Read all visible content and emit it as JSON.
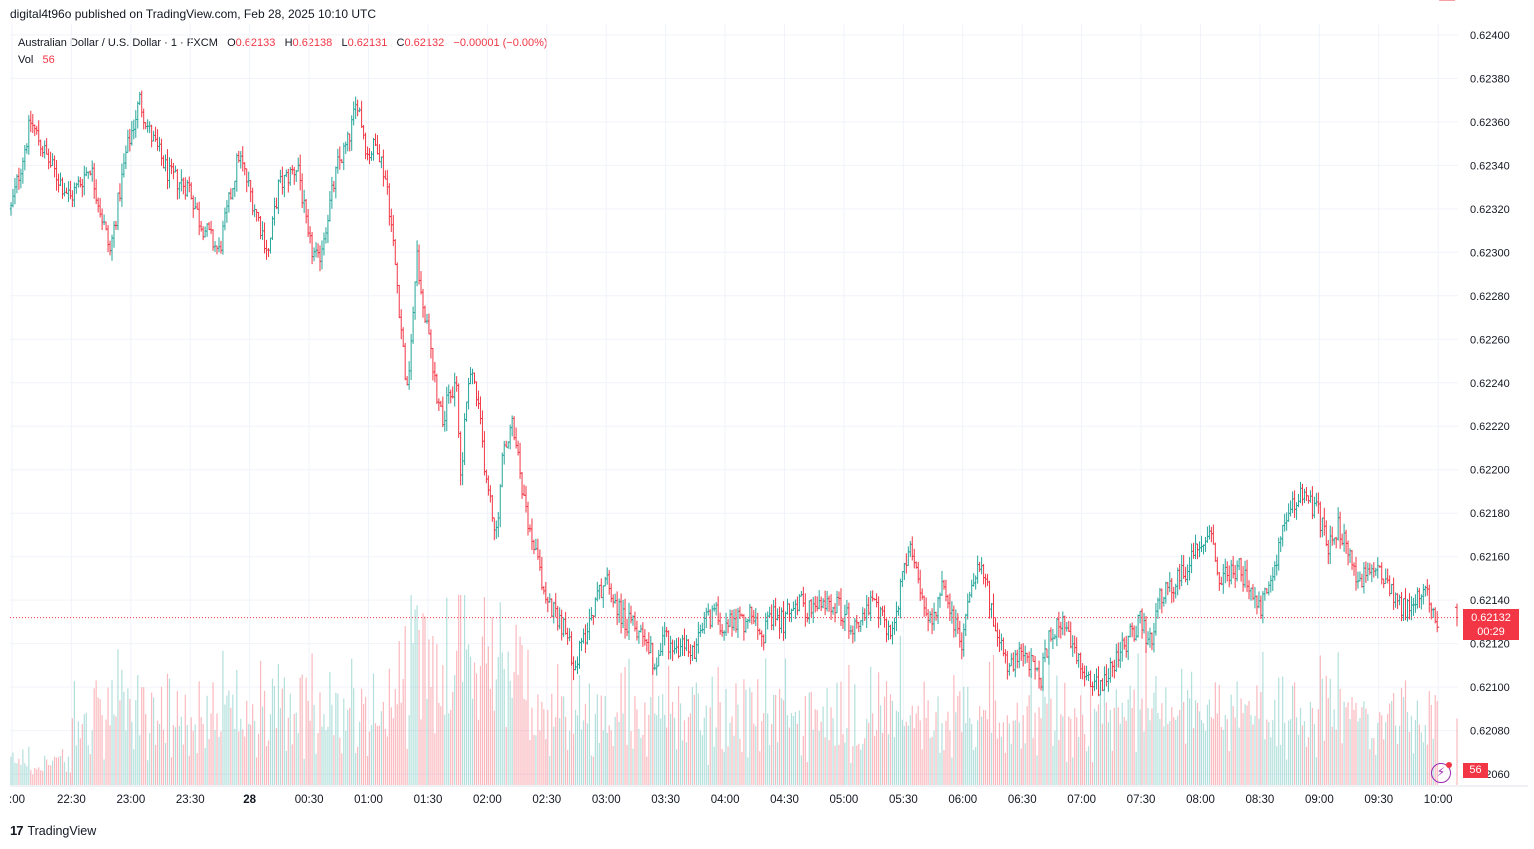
{
  "header": {
    "published": "digital4t96o published on TradingView.com, Feb 28, 2025 10:10 UTC"
  },
  "legend": {
    "symbol": "Australian Dollar / U.S. Dollar · 1 · FXCM",
    "o_label": "O",
    "o_value": "0.62133",
    "h_label": "H",
    "h_value": "0.62138",
    "l_label": "L",
    "l_value": "0.62131",
    "c_label": "C",
    "c_value": "0.62132",
    "change": "−0.00001 (−0.00%)",
    "vol_label": "Vol",
    "vol_value": "56"
  },
  "price_tag": {
    "price": "0.62132",
    "countdown": "00:29"
  },
  "volume_tag": "56",
  "footer": {
    "brand_logo": "17",
    "brand": "TradingView"
  },
  "colors": {
    "up": "#26a69a",
    "down": "#f23645",
    "grid": "#f0f3fa",
    "text": "#131722",
    "indicator": "#9c27b0"
  },
  "chart_data": {
    "type": "ohlc",
    "title": "Australian Dollar / U.S. Dollar · 1 · FXCM",
    "ylim": [
      0.62055,
      0.62405
    ],
    "y_ticks": [
      "0.62400",
      "0.62380",
      "0.62360",
      "0.62340",
      "0.62320",
      "0.62300",
      "0.62280",
      "0.62260",
      "0.62240",
      "0.62220",
      "0.62200",
      "0.62180",
      "0.62160",
      "0.62140",
      "0.62120",
      "0.62100",
      "0.62080",
      "0.62060"
    ],
    "x_ticks": [
      ":00",
      "22:30",
      "23:00",
      "23:30",
      "28",
      "00:30",
      "01:00",
      "01:30",
      "02:00",
      "02:30",
      "03:00",
      "03:30",
      "04:00",
      "04:30",
      "05:00",
      "05:30",
      "06:00",
      "06:30",
      "07:00",
      "07:30",
      "08:00",
      "08:30",
      "09:00",
      "09:30",
      "10:00"
    ],
    "x_tick_minutes": [
      -180,
      -150,
      -120,
      -90,
      -60,
      -30,
      0,
      30,
      60,
      90,
      120,
      150,
      180,
      210,
      240,
      270,
      300,
      330,
      360,
      390,
      420,
      450,
      480,
      510,
      540
    ],
    "x_range_minutes": [
      -181,
      550
    ],
    "last_price": 0.62132,
    "anchors_minutes": [
      -180,
      -175,
      -170,
      -160,
      -150,
      -140,
      -130,
      -122,
      -115,
      -110,
      -100,
      -90,
      -85,
      -75,
      -65,
      -55,
      -50,
      -45,
      -35,
      -30,
      -25,
      -15,
      -10,
      -5,
      0,
      5,
      10,
      15,
      20,
      22,
      25,
      27,
      32,
      35,
      38,
      45,
      47,
      50,
      53,
      57,
      60,
      63,
      65,
      68,
      73,
      75,
      80,
      85,
      90,
      95,
      100,
      105,
      110,
      115,
      120,
      125,
      130,
      140,
      145,
      150,
      155,
      160,
      165,
      170,
      175,
      180,
      185,
      190,
      195,
      200,
      205,
      210,
      215,
      225,
      235,
      245,
      255,
      265,
      270,
      275,
      280,
      285,
      290,
      300,
      305,
      310,
      318,
      325,
      330,
      340,
      345,
      350,
      355,
      360,
      365,
      370,
      375,
      380,
      385,
      390,
      395,
      400,
      410,
      420,
      425,
      430,
      440,
      450,
      455,
      460,
      465,
      470,
      480,
      485,
      490,
      495,
      500,
      505,
      510,
      515,
      520,
      525,
      530,
      535,
      540,
      545,
      548
    ],
    "anchors_close": [
      0.6232,
      0.6234,
      0.6236,
      0.6234,
      0.62325,
      0.6234,
      0.623,
      0.62345,
      0.6237,
      0.62355,
      0.62335,
      0.6233,
      0.62315,
      0.623,
      0.62345,
      0.62315,
      0.623,
      0.6233,
      0.6234,
      0.62305,
      0.62295,
      0.6234,
      0.6235,
      0.6237,
      0.62345,
      0.6235,
      0.6233,
      0.62285,
      0.62235,
      0.6226,
      0.623,
      0.6228,
      0.62255,
      0.62235,
      0.62225,
      0.6224,
      0.62195,
      0.62235,
      0.62245,
      0.6222,
      0.62195,
      0.6218,
      0.6217,
      0.62205,
      0.6222,
      0.6221,
      0.6218,
      0.6216,
      0.6214,
      0.62135,
      0.62125,
      0.6211,
      0.62125,
      0.6214,
      0.6215,
      0.6214,
      0.6213,
      0.62125,
      0.6211,
      0.62125,
      0.62115,
      0.6212,
      0.62115,
      0.6213,
      0.62135,
      0.62128,
      0.62132,
      0.6213,
      0.62135,
      0.62125,
      0.62132,
      0.6213,
      0.6214,
      0.62135,
      0.6214,
      0.62128,
      0.62138,
      0.62125,
      0.6215,
      0.62165,
      0.6214,
      0.6213,
      0.62145,
      0.6212,
      0.6215,
      0.6216,
      0.6212,
      0.62108,
      0.62115,
      0.62105,
      0.62125,
      0.6213,
      0.6212,
      0.62108,
      0.62105,
      0.621,
      0.6211,
      0.62115,
      0.62125,
      0.6213,
      0.6212,
      0.6214,
      0.6215,
      0.62165,
      0.62175,
      0.6215,
      0.62155,
      0.62135,
      0.62145,
      0.62165,
      0.6218,
      0.6219,
      0.6218,
      0.62165,
      0.62175,
      0.6216,
      0.6215,
      0.6215,
      0.62155,
      0.6215,
      0.6214,
      0.62135,
      0.6214,
      0.62145,
      0.62132
    ],
    "bar_count": 731,
    "volume": {
      "label": "Vol",
      "last": 56,
      "max": 160
    }
  }
}
